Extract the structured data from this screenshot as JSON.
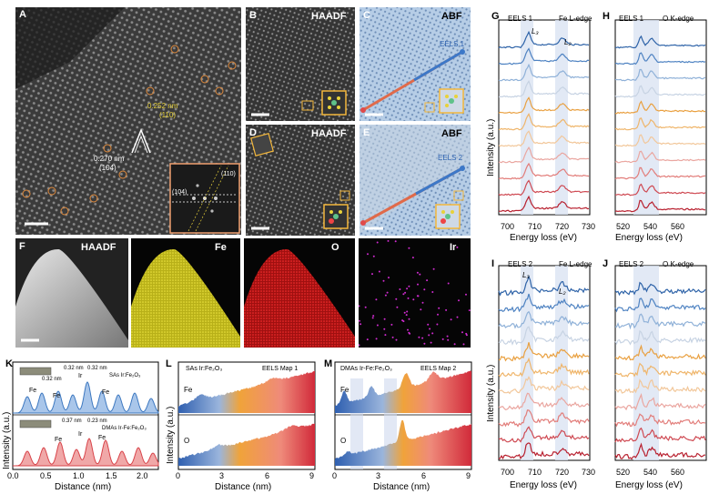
{
  "panels": {
    "A": {
      "letter": "A",
      "ann_d1": "0.252 nm",
      "ann_h1": "(110)",
      "ann_d2": "0.270 nm",
      "ann_h2": "(104)",
      "fft_h1": "(104)",
      "fft_h2": "(110)"
    },
    "B": {
      "letter": "B",
      "mode": "HAADF"
    },
    "C": {
      "letter": "C",
      "mode": "ABF",
      "label": "EELS 1"
    },
    "D": {
      "letter": "D",
      "mode": "HAADF"
    },
    "E": {
      "letter": "E",
      "mode": "ABF",
      "label": "EELS 2"
    },
    "F": {
      "letter": "F",
      "mode": "HAADF"
    },
    "F_Fe": {
      "label": "Fe"
    },
    "F_O": {
      "label": "O"
    },
    "F_Ir": {
      "label": "Ir"
    },
    "G": {
      "letter": "G",
      "header_left": "EELS 1",
      "header_right": "Fe L-edge",
      "l3": "L₃",
      "l2": "L₂",
      "xlabel": "Energy loss (eV)",
      "ylabel": "Intensity (a.u.)",
      "ticks": [
        "700",
        "710",
        "720",
        "730"
      ]
    },
    "H": {
      "letter": "H",
      "header_left": "EELS 1",
      "header_right": "O K-edge",
      "xlabel": "Energy loss (eV)",
      "ticks": [
        "520",
        "540",
        "560"
      ]
    },
    "I": {
      "letter": "I",
      "header_left": "EELS 2",
      "header_right": "Fe L-edge",
      "l3": "L₃",
      "l2": "L₂",
      "xlabel": "Energy loss (eV)",
      "ylabel": "Intensity (a.u.)",
      "ticks": [
        "700",
        "710",
        "720",
        "730"
      ]
    },
    "J": {
      "letter": "J",
      "header_left": "EELS 2",
      "header_right": "O K-edge",
      "xlabel": "Energy loss (eV)",
      "ticks": [
        "520",
        "540",
        "560"
      ]
    },
    "K": {
      "letter": "K",
      "top_d1": "0.32 nm",
      "top_d2": "0.32 nm",
      "top_d3": "0.32 nm",
      "top_sample": "SAs Ir:Fe₂O₃",
      "bot_d1": "0.37 nm",
      "bot_d2": "0.23 nm",
      "bot_sample": "DMAs Ir-Fe:Fe₂O₃",
      "fe": "Fe",
      "ir": "Ir",
      "xlabel": "Distance (nm)",
      "ylabel": "Intensity (a.u.)",
      "ticks": [
        "0.0",
        "0.5",
        "1.0",
        "1.5",
        "2.0"
      ]
    },
    "L": {
      "letter": "L",
      "sample": "SAs Ir:Fe₂O₃",
      "map": "EELS Map 1",
      "fe": "Fe",
      "o": "O",
      "xlabel": "Distance (nm)",
      "ylabel": "Intensity (a.u.)",
      "ticks": [
        "0",
        "3",
        "6",
        "9"
      ]
    },
    "M": {
      "letter": "M",
      "sample": "DMAs Ir-Fe:Fe₂O₃",
      "map": "EELS Map 2",
      "fe": "Fe",
      "o": "O",
      "xlabel": "Distance (nm)",
      "ticks": [
        "0",
        "3",
        "6",
        "9"
      ]
    }
  },
  "colors": {
    "spectra": [
      "#2e63a8",
      "#4f83c2",
      "#8fb1d8",
      "#c7d3e3",
      "#e9a040",
      "#efb56a",
      "#f2c79a",
      "#eaa6a0",
      "#e27d7a",
      "#cf4a53",
      "#b8202f"
    ]
  },
  "chart_data": [
    {
      "type": "line",
      "panel": "G",
      "xlabel": "Energy loss (eV)",
      "ylabel": "Intensity (a.u.)",
      "xlim": [
        700,
        730
      ],
      "annotations": [
        "L₃",
        "L₂"
      ],
      "n_series": 11
    },
    {
      "type": "line",
      "panel": "H",
      "xlabel": "Energy loss (eV)",
      "xlim": [
        515,
        575
      ],
      "n_series": 11
    },
    {
      "type": "line",
      "panel": "I",
      "xlabel": "Energy loss (eV)",
      "ylabel": "Intensity (a.u.)",
      "xlim": [
        700,
        730
      ],
      "annotations": [
        "L₃",
        "L₂"
      ],
      "n_series": 11
    },
    {
      "type": "line",
      "panel": "J",
      "xlabel": "Energy loss (eV)",
      "xlim": [
        515,
        575
      ],
      "n_series": 11
    },
    {
      "type": "line",
      "panel": "K",
      "xlabel": "Distance (nm)",
      "ylabel": "Intensity (a.u.)",
      "xlim": [
        0,
        2.1
      ]
    },
    {
      "type": "area",
      "panel": "L",
      "xlabel": "Distance (nm)",
      "ylabel": "Intensity (a.u.)",
      "xlim": [
        0,
        9
      ]
    },
    {
      "type": "area",
      "panel": "M",
      "xlabel": "Distance (nm)",
      "xlim": [
        0,
        9
      ]
    }
  ]
}
